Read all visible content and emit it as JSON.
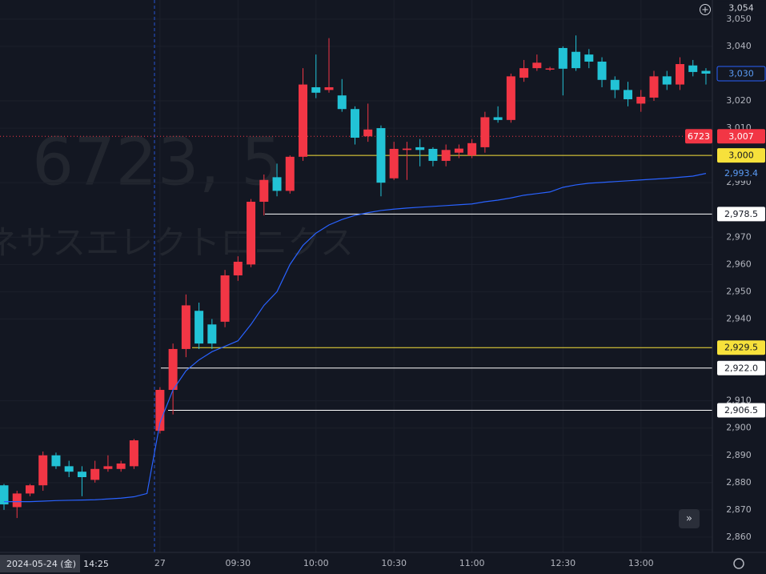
{
  "chart_data": {
    "type": "candlestick",
    "watermark": {
      "ticker": "6723, 5",
      "name": "ネサスエレクトロニクス"
    },
    "categories": [
      null,
      null,
      null,
      null,
      null,
      null,
      null,
      null,
      null,
      null,
      null,
      null,
      "27",
      null,
      null,
      null,
      null,
      null,
      "09:30",
      null,
      null,
      null,
      null,
      null,
      "10:00",
      null,
      null,
      null,
      null,
      null,
      "10:30",
      null,
      null,
      null,
      null,
      null,
      "11:00",
      null,
      null,
      null,
      null,
      null,
      null,
      "12:30",
      null,
      null,
      null,
      null,
      null,
      "13:00",
      null,
      null,
      null,
      null,
      null
    ],
    "open": [
      2879,
      2871,
      2876,
      2879,
      2890,
      2886,
      2884,
      2881,
      2885,
      2885,
      2886,
      null,
      2899,
      2914,
      2929,
      2943,
      2938,
      2939,
      2956,
      2960,
      2983,
      2992,
      2987,
      2999.5,
      3025,
      3024,
      3022,
      3017,
      3007,
      3010,
      2991.6,
      3002,
      3003,
      3002.4,
      2998,
      3001,
      3000,
      3003,
      3014,
      3013,
      3028.5,
      3032,
      3031.7,
      3039.4,
      3038,
      3037,
      3034.4,
      3027.7,
      3024,
      3019,
      3021.2,
      3029,
      3026,
      3033,
      3031
    ],
    "high": [
      2879.5,
      2877,
      2879.5,
      2891.4,
      2891,
      2888,
      2886,
      2888,
      2890,
      2888,
      2896,
      null,
      2915,
      2931,
      2949,
      2946,
      2940,
      2958,
      2963,
      2984,
      2993,
      2997,
      3000,
      3032,
      3037,
      3043,
      3028,
      3018,
      3019,
      3011,
      3005,
      3005,
      3006,
      3003,
      3004,
      3004,
      3006,
      3016,
      3018,
      3030,
      3035,
      3037,
      3032.5,
      3040,
      3044,
      3039,
      3036,
      3029,
      3027,
      3024,
      3031,
      3031,
      3036,
      3035,
      3032
    ],
    "low": [
      2870,
      2867,
      2875,
      2877,
      2885,
      2882,
      2875,
      2880,
      2884,
      2884,
      2885,
      null,
      2898,
      2905,
      2926,
      2929,
      2929,
      2937,
      2954,
      2959,
      2978,
      2985,
      2986,
      2998,
      3021,
      3023,
      3016,
      3004,
      3005,
      2985,
      2991,
      2991,
      2996,
      2996,
      2996,
      2999,
      2999,
      3001,
      3012,
      3012,
      3027,
      3031,
      3031,
      3022,
      3031,
      3032,
      3025,
      3021,
      3018,
      3016,
      3020,
      3024,
      3024,
      3029,
      3026
    ],
    "close": [
      2872,
      2876,
      2879,
      2890,
      2886,
      2884,
      2882,
      2885,
      2886,
      2887,
      2895.5,
      null,
      2914,
      2929,
      2945,
      2931,
      2931,
      2956,
      2961,
      2983,
      2991,
      2987,
      2999.5,
      3026,
      3023,
      3025,
      3017,
      3006.5,
      3009.5,
      2990,
      3002.4,
      3002.5,
      3002,
      2998,
      3002,
      3002.5,
      3004.5,
      3014,
      3013,
      3029,
      3032,
      3034,
      3031.9,
      3031.8,
      3032,
      3034.4,
      3027.7,
      3024,
      3020.6,
      3021.5,
      3029,
      3026,
      3033.5,
      3030.6,
      3030
    ],
    "up_color": "#f23645",
    "down_color": "#22c3d6",
    "vwap": {
      "color": "#2962ff",
      "last_label": "2,993.4",
      "values": [
        2873,
        2873,
        2873,
        2873.2,
        2873.4,
        2873.5,
        2873.6,
        2873.7,
        2874,
        2874.3,
        2874.8,
        2876,
        2902,
        2914,
        2921,
        2925,
        2928,
        2930,
        2932,
        2938,
        2945,
        2950,
        2960,
        2967,
        2971.5,
        2974.5,
        2976.5,
        2978,
        2979,
        2979.8,
        2980.3,
        2980.7,
        2981,
        2981.3,
        2981.6,
        2981.9,
        2982.2,
        2983,
        2983.6,
        2984.4,
        2985.4,
        2986,
        2986.6,
        2988.3,
        2989.2,
        2989.8,
        2990.1,
        2990.4,
        2990.7,
        2991,
        2991.3,
        2991.6,
        2992,
        2992.4,
        2993.4
      ]
    },
    "price_lines": [
      {
        "value": 3000,
        "label": "3,000",
        "color": "#f7e13b"
      },
      {
        "value": 2978.5,
        "label": "2,978.5",
        "color": "#ffffff"
      },
      {
        "value": 2929.5,
        "label": "2,929.5",
        "color": "#f7e13b"
      },
      {
        "value": 2922,
        "label": "2,922.0",
        "color": "#ffffff"
      },
      {
        "value": 2906.5,
        "label": "2,906.5",
        "color": "#ffffff"
      }
    ],
    "current_price": {
      "value": 3007,
      "label": "3,007",
      "symbol": "6723",
      "color": "#f23645"
    },
    "last_price": {
      "value": 3030,
      "label": "3,030",
      "color": "#2962ff"
    },
    "crosshair": {
      "price": 3054,
      "price_label": "3,054",
      "date": "2024-05-24 (金)",
      "time": "14:25"
    },
    "ylim": [
      2854.4,
      3057
    ],
    "yticks": [
      {
        "value": 2860,
        "label": "2,860"
      },
      {
        "value": 2870,
        "label": "2,870"
      },
      {
        "value": 2880,
        "label": "2,880"
      },
      {
        "value": 2890,
        "label": "2,890"
      },
      {
        "value": 2900,
        "label": "2,900"
      },
      {
        "value": 2910,
        "label": "2,910"
      },
      {
        "value": 2940,
        "label": "2,940"
      },
      {
        "value": 2950,
        "label": "2,950"
      },
      {
        "value": 2960,
        "label": "2,960"
      },
      {
        "value": 2970,
        "label": "2,970"
      },
      {
        "value": 2990,
        "label": "2,990"
      },
      {
        "value": 3010,
        "label": "3,010"
      },
      {
        "value": 3020,
        "label": "3,020"
      },
      {
        "value": 3040,
        "label": "3,040"
      },
      {
        "value": 3050,
        "label": "3,050"
      }
    ],
    "grid": true
  }
}
